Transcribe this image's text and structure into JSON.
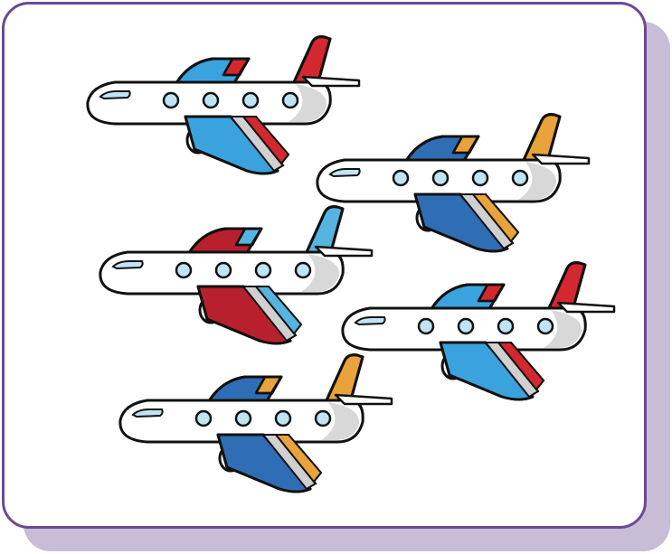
{
  "card": {
    "border_color": "#6b4a91",
    "shadow_color": "#c7bdd7",
    "background": "#ffffff"
  },
  "airplanes": [
    {
      "name": "airplane-1",
      "primary": "#3aa3de",
      "secondary": "#d3282f",
      "windows": 4
    },
    {
      "name": "airplane-2",
      "primary": "#2f6db5",
      "secondary": "#e8a33a",
      "windows": 4
    },
    {
      "name": "airplane-3",
      "primary": "#b8202e",
      "secondary": "#55b4e0",
      "windows": 4
    },
    {
      "name": "airplane-4",
      "primary": "#3aa3de",
      "secondary": "#d3282f",
      "windows": 4
    },
    {
      "name": "airplane-5",
      "primary": "#2f6db5",
      "secondary": "#e8a33a",
      "windows": 4
    }
  ]
}
